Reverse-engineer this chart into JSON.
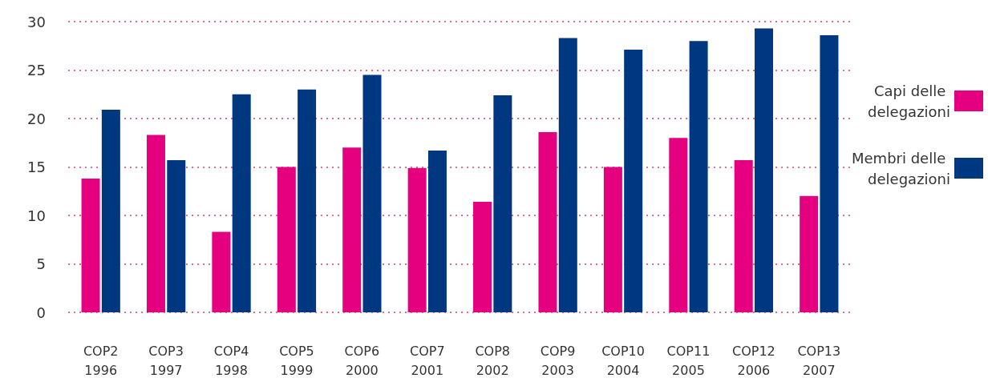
{
  "chart_data": {
    "type": "bar",
    "categories": [
      "COP2\n1996",
      "COP3\n1997",
      "COP4\n1998",
      "COP5\n1999",
      "COP6\n2000",
      "COP7\n2001",
      "COP8\n2002",
      "COP9\n2003",
      "COP10\n2004",
      "COP11\n2005",
      "COP12\n2006",
      "COP13\n2007"
    ],
    "series": [
      {
        "name": "Capi delle delegazioni",
        "color": "#e4007f",
        "values": [
          13.8,
          18.3,
          8.3,
          15.0,
          17.0,
          14.9,
          11.4,
          18.6,
          15.0,
          18.0,
          15.7,
          12.0
        ]
      },
      {
        "name": "Membri delle delegazioni",
        "color": "#003781",
        "values": [
          20.9,
          15.7,
          22.5,
          23.0,
          24.5,
          16.7,
          22.4,
          28.3,
          27.1,
          28.0,
          29.3,
          28.6
        ]
      }
    ],
    "ylim": [
      0,
      30
    ],
    "yticks": [
      0,
      5,
      10,
      15,
      20,
      25,
      30
    ],
    "grid": "y",
    "legend": "right"
  }
}
